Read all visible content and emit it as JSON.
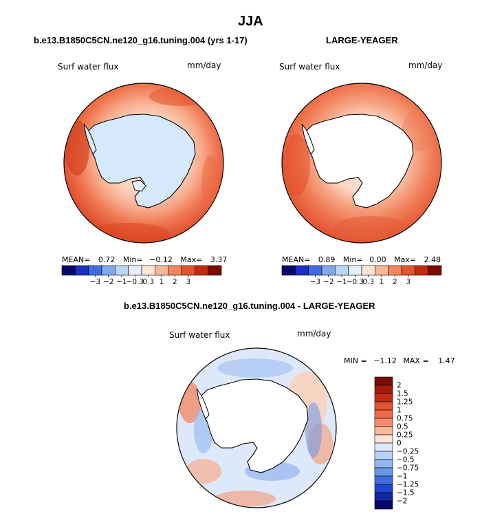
{
  "figure": {
    "title": "JJA"
  },
  "panels": [
    {
      "id": "model",
      "title": "b.e13.B1850C5CN.ne120_g16.tuning.004 (yrs 1-17)",
      "field_label": "Surf water flux",
      "units": "mm/day",
      "stats": {
        "mean_label": "MEAN=",
        "mean": "0.72",
        "min_label": "Min=",
        "min": "-0.12",
        "max_label": "Max=",
        "max": "3.37"
      },
      "land_color": "#d6e8fb"
    },
    {
      "id": "obs",
      "title": "LARGE-YEAGER",
      "field_label": "Surf water flux",
      "units": "mm/day",
      "stats": {
        "mean_label": "MEAN=",
        "mean": "0.89",
        "min_label": "Min=",
        "min": "0.00",
        "max_label": "Max=",
        "max": "2.48"
      },
      "land_color": "#ffffff"
    }
  ],
  "colorbar_horizontal": {
    "tick_labels": [
      "-3",
      "-2",
      "-1",
      "-0.3",
      "0.3",
      "1",
      "2",
      "3"
    ],
    "colors": [
      "#08086b",
      "#1c2fc2",
      "#3f6de0",
      "#7fa8ef",
      "#bcd6f6",
      "#e6f0fc",
      "#fde5d6",
      "#f9b79a",
      "#f38561",
      "#e5532e",
      "#c42a12",
      "#7a0c04"
    ]
  },
  "diff_panel": {
    "title": "b.e13.B1850C5CN.ne120_g16.tuning.004 - LARGE-YEAGER",
    "field_label": "Surf water flux",
    "units": "mm/day",
    "stats": {
      "min_label": "MIN =",
      "min": "-1.12",
      "max_label": "MAX =",
      "max": "1.47"
    }
  },
  "colorbar_vertical": {
    "tick_labels": [
      "2",
      "1.5",
      "1.25",
      "1",
      "0.75",
      "0.5",
      "0.25",
      "0",
      "-0.25",
      "-0.5",
      "-0.75",
      "-1",
      "-1.25",
      "-1.5",
      "-2"
    ],
    "colors": [
      "#7a0c04",
      "#a3190a",
      "#c42a12",
      "#e5532e",
      "#f06a45",
      "#f58c6b",
      "#f9b79a",
      "#fde5d6",
      "#dbe9fb",
      "#b7d1f5",
      "#91b6ef",
      "#6a97e8",
      "#3f6de0",
      "#2144cf",
      "#1226a3",
      "#08086b"
    ]
  },
  "colors": {
    "ocean_model_outer": "#e0532f",
    "ocean_model_mid": "#f58c6b",
    "ocean_model_inner": "#fbd9c6",
    "ocean_diff": "#d9e8fb",
    "coast": "#000000"
  }
}
